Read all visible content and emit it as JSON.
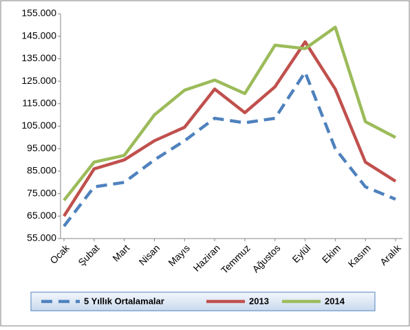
{
  "chart_data": {
    "type": "line",
    "categories": [
      "Ocak",
      "Şubat",
      "Mart",
      "Nisan",
      "Mayıs",
      "Haziran",
      "Temmuz",
      "Ağustos",
      "Eylül",
      "Ekim",
      "Kasım",
      "Aralık"
    ],
    "series": [
      {
        "name": "5 Yıllık Ortalamalar",
        "color": "#4f81bd",
        "dashed": true,
        "values": [
          60500,
          78000,
          80000,
          90000,
          98500,
          108500,
          106500,
          108500,
          129000,
          95000,
          78000,
          72500
        ]
      },
      {
        "name": "2013",
        "color": "#c0504d",
        "values": [
          65000,
          86000,
          90000,
          98500,
          104500,
          121500,
          111000,
          122500,
          142500,
          121500,
          89000,
          80500
        ]
      },
      {
        "name": "2014",
        "color": "#9bbb59",
        "values": [
          72000,
          89000,
          92000,
          110000,
          121000,
          125500,
          119500,
          141000,
          139500,
          149000,
          107000,
          100000
        ]
      }
    ],
    "ylim": [
      55000,
      155000
    ],
    "yticks": [
      {
        "value": 55000,
        "label": "55.000"
      },
      {
        "value": 65000,
        "label": "65.000"
      },
      {
        "value": 75000,
        "label": "75.000"
      },
      {
        "value": 85000,
        "label": "85.000"
      },
      {
        "value": 95000,
        "label": "95.000"
      },
      {
        "value": 105000,
        "label": "105.000"
      },
      {
        "value": 115000,
        "label": "115.000"
      },
      {
        "value": 125000,
        "label": "125.000"
      },
      {
        "value": 135000,
        "label": "135.000"
      },
      {
        "value": 145000,
        "label": "145.000"
      },
      {
        "value": 155000,
        "label": "155.000"
      }
    ],
    "grid": false
  }
}
